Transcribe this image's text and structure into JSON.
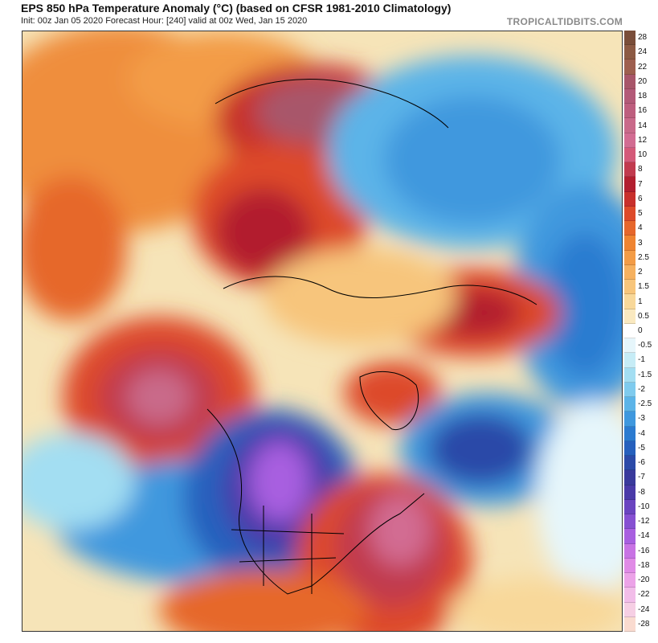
{
  "header": {
    "title": "EPS 850 hPa Temperature Anomaly (°C) (based on CFSR 1981-2010 Climatology)",
    "subtitle": "Init: 00z Jan 05 2020   Forecast Hour: [240]   valid at 00z Wed, Jan 15 2020",
    "brand": "TROPICALTIDBITS.COM"
  },
  "map": {
    "projection": "north-polar-stereographic",
    "background_color": "#f6e4b8"
  },
  "colorbar": {
    "levels": [
      {
        "label": "28",
        "color": "#7a4e3a"
      },
      {
        "label": "24",
        "color": "#8c5a44"
      },
      {
        "label": "22",
        "color": "#9e5f4f"
      },
      {
        "label": "20",
        "color": "#a8566a"
      },
      {
        "label": "18",
        "color": "#b35a78"
      },
      {
        "label": "16",
        "color": "#bd5e7e"
      },
      {
        "label": "14",
        "color": "#c96a8a"
      },
      {
        "label": "12",
        "color": "#d26c92"
      },
      {
        "label": "10",
        "color": "#d45a79"
      },
      {
        "label": "8",
        "color": "#c13a4e"
      },
      {
        "label": "7",
        "color": "#b21f2f"
      },
      {
        "label": "6",
        "color": "#c8302c"
      },
      {
        "label": "5",
        "color": "#dd4a2a"
      },
      {
        "label": "4",
        "color": "#e6672c"
      },
      {
        "label": "3",
        "color": "#ef8432"
      },
      {
        "label": "2.5",
        "color": "#f39c46"
      },
      {
        "label": "2",
        "color": "#f6b15f"
      },
      {
        "label": "1.5",
        "color": "#f7c57b"
      },
      {
        "label": "1",
        "color": "#f8d89a"
      },
      {
        "label": "0.5",
        "color": "#fae9c0"
      },
      {
        "label": "0",
        "color": "#ffffff"
      },
      {
        "label": "-0.5",
        "color": "#e6f6fb"
      },
      {
        "label": "-1",
        "color": "#c6ecf6"
      },
      {
        "label": "-1.5",
        "color": "#a3def2"
      },
      {
        "label": "-2",
        "color": "#7fcbee"
      },
      {
        "label": "-2.5",
        "color": "#5cb4e8"
      },
      {
        "label": "-3",
        "color": "#3f98de"
      },
      {
        "label": "-4",
        "color": "#2c7bd0"
      },
      {
        "label": "-5",
        "color": "#2660bd"
      },
      {
        "label": "-6",
        "color": "#2b4aa8"
      },
      {
        "label": "-7",
        "color": "#3a3a9c"
      },
      {
        "label": "-8",
        "color": "#4a3aa8"
      },
      {
        "label": "-10",
        "color": "#6a44c0"
      },
      {
        "label": "-12",
        "color": "#8650d2"
      },
      {
        "label": "-14",
        "color": "#a85fe0"
      },
      {
        "label": "-16",
        "color": "#c873e4"
      },
      {
        "label": "-18",
        "color": "#e08be6"
      },
      {
        "label": "-20",
        "color": "#eca3e8"
      },
      {
        "label": "-22",
        "color": "#f2bde9"
      },
      {
        "label": "-24",
        "color": "#f6cfe4"
      },
      {
        "label": "-28",
        "color": "#fadbd0"
      }
    ]
  }
}
